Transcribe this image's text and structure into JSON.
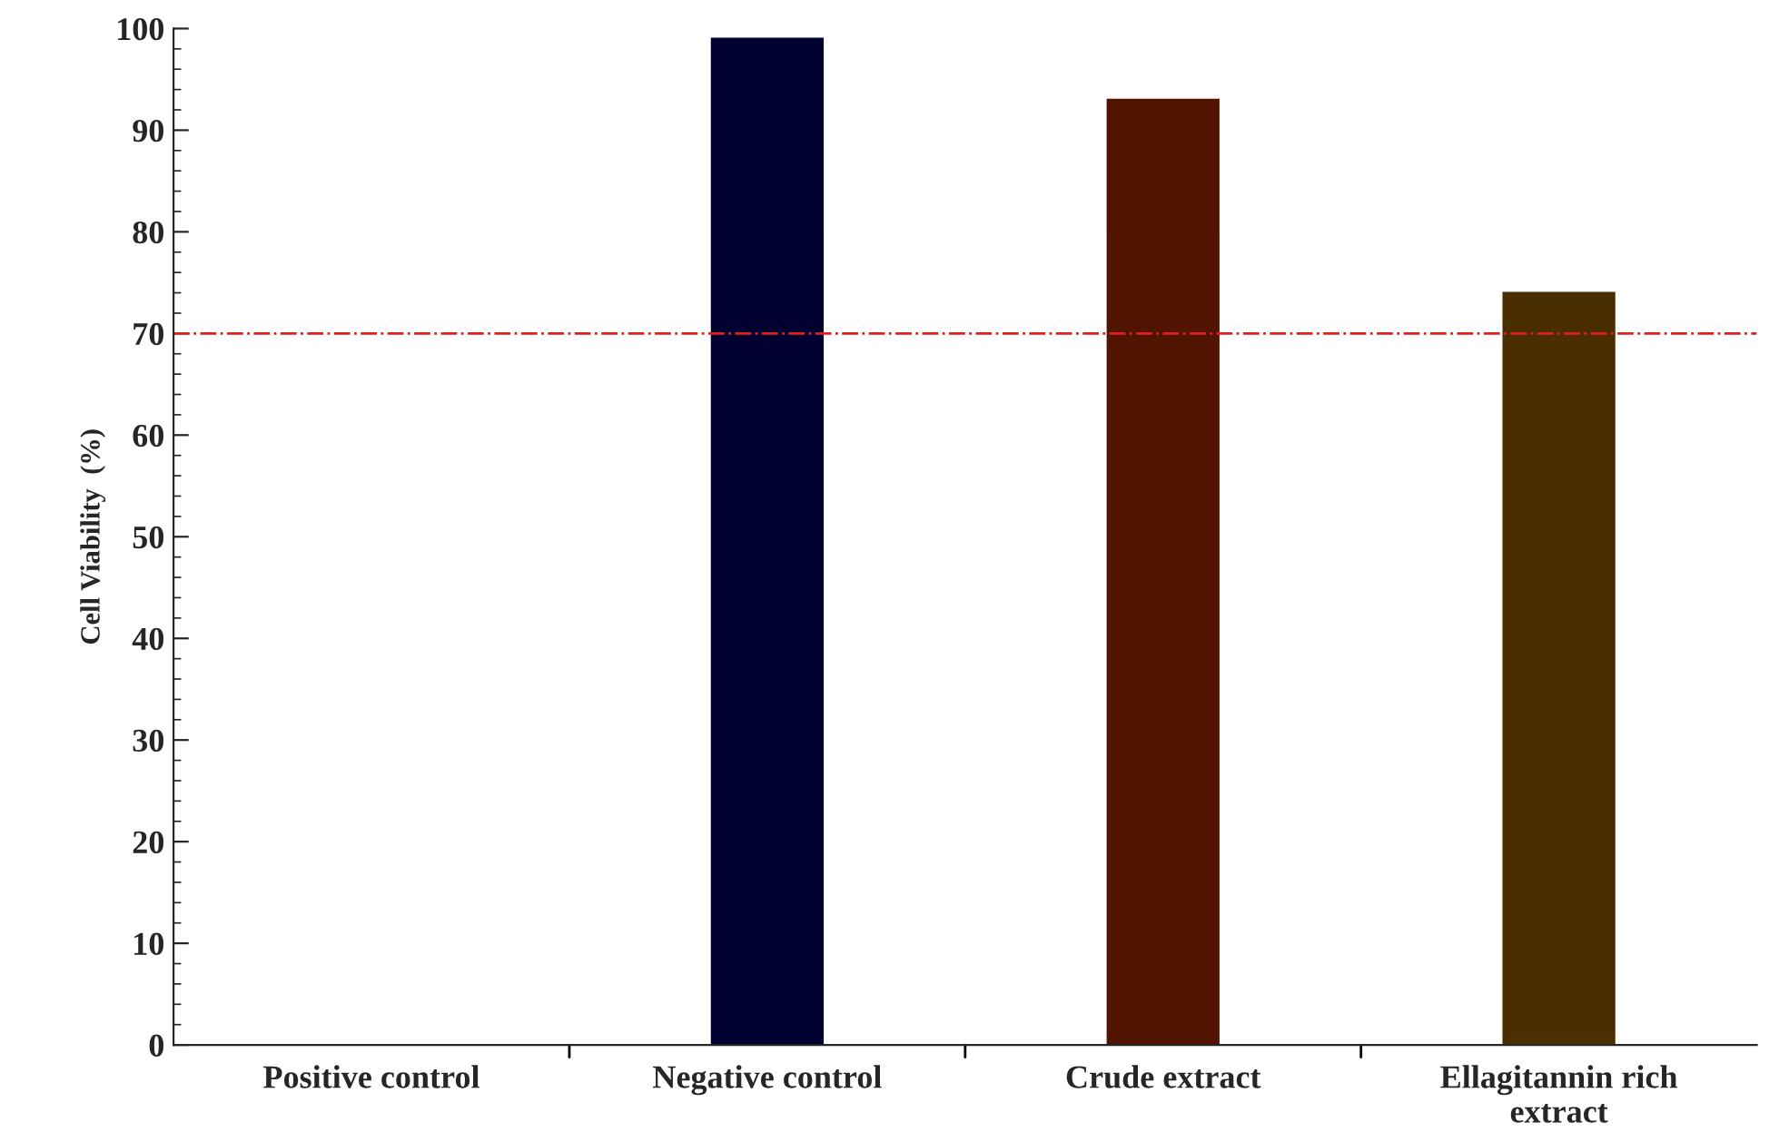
{
  "chart_data": {
    "type": "bar",
    "ylabel": "Cell Viability  (%)",
    "categories": [
      "Positive control",
      "Negative control",
      "Crude extract",
      "Ellagitannin rich\nextract"
    ],
    "values": [
      0,
      99,
      93,
      74
    ],
    "colors": [
      "#000030",
      "#000030",
      "#501400",
      "#4a2e00"
    ],
    "ylim": [
      0,
      100
    ],
    "yticks": [
      0,
      {
        "value": 2,
        "label": null
      },
      {
        "value": 4,
        "label": null
      },
      {
        "value": 6,
        "label": null
      },
      {
        "value": 8,
        "label": null
      },
      10,
      {
        "value": 12,
        "label": null
      },
      {
        "value": 14,
        "label": null
      },
      {
        "value": 16,
        "label": null
      },
      {
        "value": 18,
        "label": null
      },
      20,
      {
        "value": 22,
        "label": null
      },
      {
        "value": 24,
        "label": null
      },
      {
        "value": 26,
        "label": null
      },
      {
        "value": 28,
        "label": null
      },
      30,
      {
        "value": 32,
        "label": null
      },
      {
        "value": 34,
        "label": null
      },
      {
        "value": 36,
        "label": null
      },
      {
        "value": 38,
        "label": null
      },
      40,
      {
        "value": 42,
        "label": null
      },
      {
        "value": 44,
        "label": null
      },
      {
        "value": 46,
        "label": null
      },
      {
        "value": 48,
        "label": null
      },
      50,
      {
        "value": 52,
        "label": null
      },
      {
        "value": 54,
        "label": null
      },
      {
        "value": 56,
        "label": null
      },
      {
        "value": 58,
        "label": null
      },
      60,
      {
        "value": 62,
        "label": null
      },
      {
        "value": 64,
        "label": null
      },
      {
        "value": 66,
        "label": null
      },
      {
        "value": 68,
        "label": null
      },
      70,
      {
        "value": 72,
        "label": null
      },
      {
        "value": 74,
        "label": null
      },
      {
        "value": 76,
        "label": null
      },
      {
        "value": 78,
        "label": null
      },
      80,
      {
        "value": 82,
        "label": null
      },
      {
        "value": 84,
        "label": null
      },
      {
        "value": 86,
        "label": null
      },
      {
        "value": 88,
        "label": null
      },
      90,
      {
        "value": 92,
        "label": null
      },
      {
        "value": 94,
        "label": null
      },
      {
        "value": 96,
        "label": null
      },
      {
        "value": 98,
        "label": null
      },
      100
    ],
    "ref_lines": [
      {
        "axis": "y",
        "value": 70,
        "color": "#e02020",
        "line_style": "dashdot"
      }
    ],
    "grid": false,
    "legend": false
  }
}
